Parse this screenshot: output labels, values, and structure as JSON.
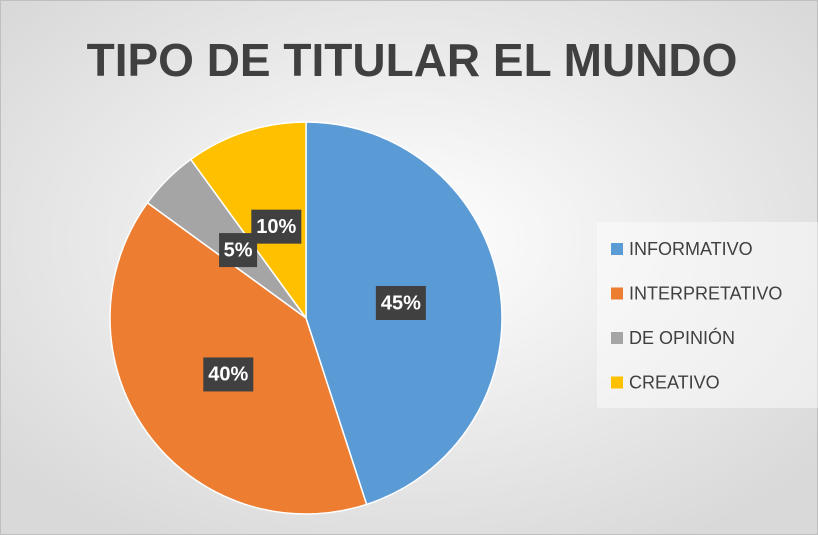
{
  "chart_data": {
    "type": "pie",
    "title": "TIPO DE TITULAR EL MUNDO",
    "categories": [
      "INFORMATIVO",
      "INTERPRETATIVO",
      "DE OPINIÓN",
      "CREATIVO"
    ],
    "values": [
      45,
      40,
      5,
      10
    ],
    "value_labels": [
      "45%",
      "40%",
      "5%",
      "10%"
    ],
    "colors": [
      "#5b9bd5",
      "#ed7d31",
      "#a5a5a5",
      "#ffc000"
    ],
    "legend": "right"
  }
}
